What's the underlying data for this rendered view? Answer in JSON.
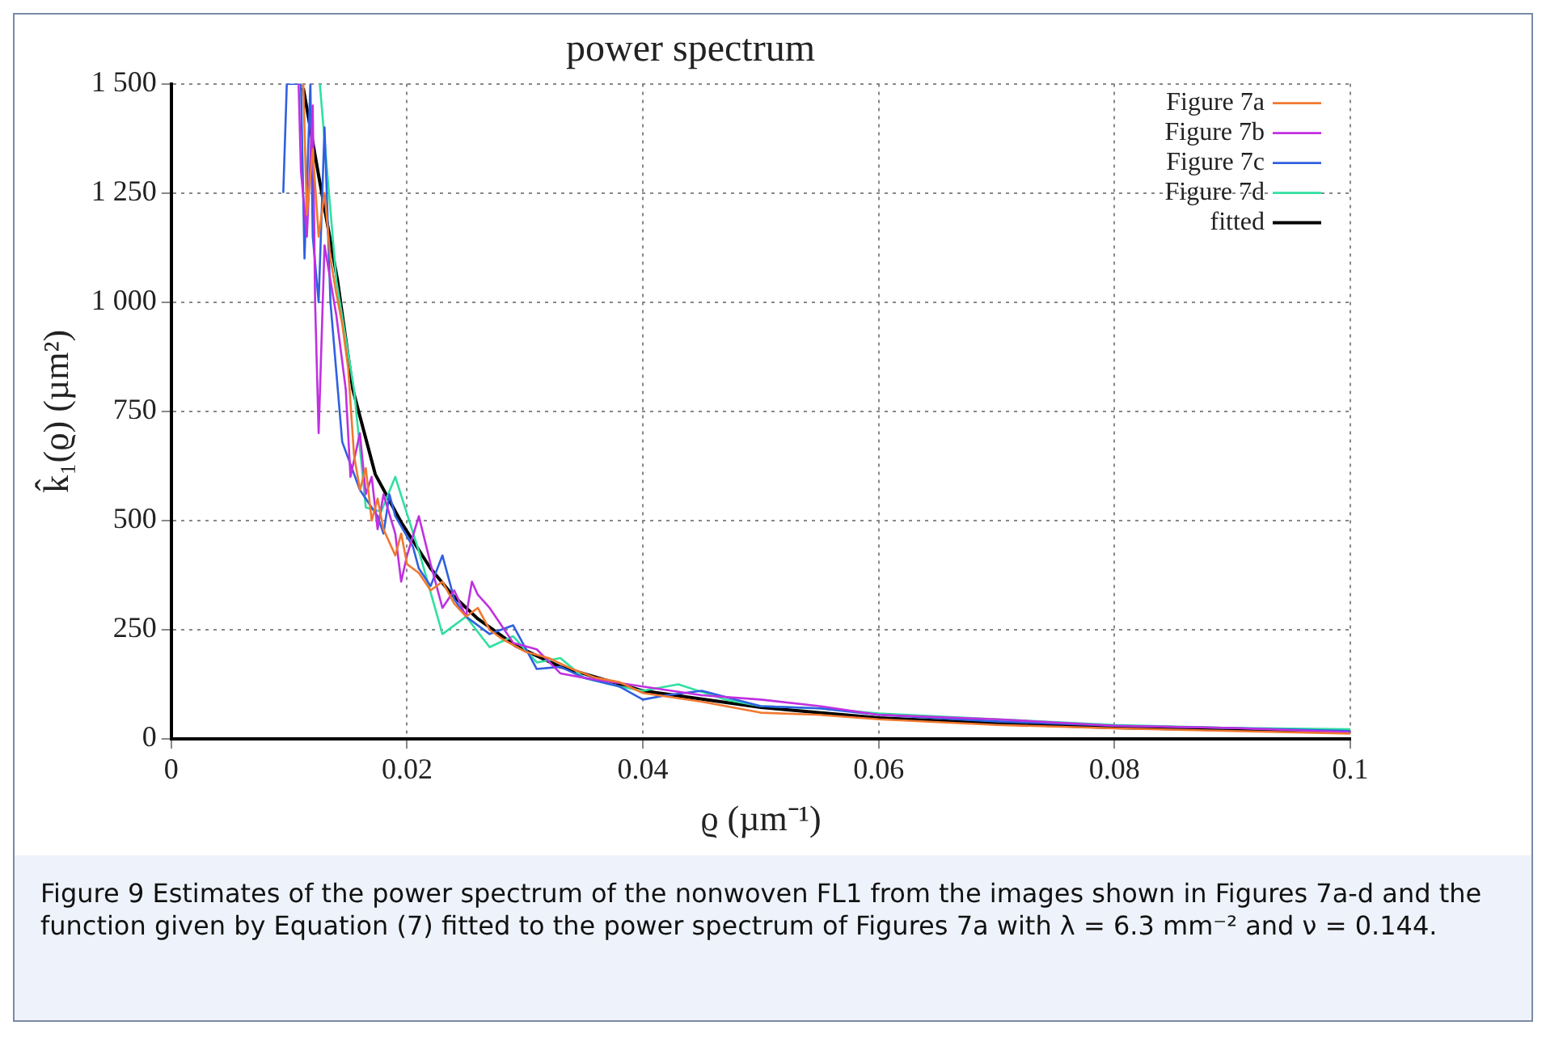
{
  "chart_data": {
    "type": "line",
    "title": "power spectrum",
    "xlabel": "ϱ (µm⁻¹)",
    "ylabel": "k̂₁(ϱ) (µm²)",
    "xlim": [
      0,
      0.1
    ],
    "xticks": [
      0,
      0.02,
      0.04,
      0.06,
      0.08,
      0.1
    ],
    "ylim": [
      0,
      1500
    ],
    "yticks": [
      0,
      250,
      500,
      750,
      {
        "value": 1000,
        "label": "1 000"
      },
      {
        "value": 1250,
        "label": "1 250"
      },
      {
        "value": 1500,
        "label": "1 500"
      }
    ],
    "grid": true,
    "legend": "top right",
    "marker": "none",
    "line_style": "solid",
    "annotations": [
      "Figure 9 Estimates of the power spectrum of the nonwoven FL1 from the images shown in Figures 7a-d and the function given by Equation (7) fitted to the power spectrum of Figures 7a with λ = 6.3 mm⁻² and ν = 0.144."
    ],
    "series": [
      {
        "name": "Figure 7a",
        "color": "#f07830",
        "x": [
          0.0112,
          0.0115,
          0.012,
          0.0125,
          0.013,
          0.0135,
          0.014,
          0.0145,
          0.015,
          0.0155,
          0.016,
          0.0165,
          0.017,
          0.0175,
          0.018,
          0.019,
          0.0195,
          0.02,
          0.021,
          0.022,
          0.023,
          0.024,
          0.025,
          0.026,
          0.027,
          0.028,
          0.03,
          0.032,
          0.034,
          0.036,
          0.038,
          0.04,
          0.045,
          0.05,
          0.055,
          0.06,
          0.07,
          0.08,
          0.09,
          0.1
        ],
        "values": [
          1500,
          1200,
          1350,
          1150,
          1250,
          1100,
          1020,
          950,
          850,
          650,
          570,
          620,
          500,
          550,
          480,
          420,
          470,
          400,
          380,
          340,
          360,
          310,
          280,
          300,
          250,
          230,
          200,
          185,
          160,
          140,
          130,
          105,
          85,
          60,
          55,
          45,
          32,
          24,
          18,
          12
        ]
      },
      {
        "name": "Figure 7b",
        "color": "#c030e0",
        "x": [
          0.0108,
          0.011,
          0.0115,
          0.012,
          0.0122,
          0.0125,
          0.013,
          0.0135,
          0.014,
          0.0148,
          0.0152,
          0.016,
          0.0165,
          0.017,
          0.0175,
          0.018,
          0.019,
          0.0195,
          0.02,
          0.021,
          0.022,
          0.023,
          0.024,
          0.025,
          0.0255,
          0.026,
          0.027,
          0.029,
          0.031,
          0.033,
          0.035,
          0.04,
          0.045,
          0.05,
          0.055,
          0.06,
          0.07,
          0.08,
          0.09,
          0.1
        ],
        "values": [
          1500,
          1300,
          1150,
          1450,
          1000,
          700,
          1130,
          1050,
          970,
          800,
          600,
          700,
          560,
          600,
          480,
          560,
          470,
          360,
          420,
          510,
          400,
          300,
          340,
          280,
          360,
          330,
          300,
          220,
          205,
          150,
          140,
          120,
          100,
          90,
          75,
          55,
          45,
          30,
          25,
          15
        ]
      },
      {
        "name": "Figure 7c",
        "color": "#3060e0",
        "x": [
          0.0095,
          0.0098,
          0.011,
          0.0113,
          0.0118,
          0.012,
          0.0125,
          0.013,
          0.0135,
          0.0145,
          0.016,
          0.0175,
          0.018,
          0.0185,
          0.019,
          0.0205,
          0.021,
          0.022,
          0.023,
          0.024,
          0.025,
          0.027,
          0.029,
          0.031,
          0.033,
          0.035,
          0.038,
          0.04,
          0.042,
          0.045,
          0.05,
          0.055,
          0.06,
          0.07,
          0.08,
          0.09,
          0.1
        ],
        "values": [
          1250,
          1500,
          1500,
          1100,
          1500,
          1150,
          1000,
          1400,
          1000,
          680,
          570,
          510,
          470,
          560,
          510,
          440,
          390,
          350,
          420,
          320,
          280,
          240,
          260,
          160,
          165,
          140,
          120,
          90,
          100,
          110,
          75,
          70,
          55,
          40,
          30,
          25,
          18
        ]
      },
      {
        "name": "Figure 7d",
        "color": "#30e0a0",
        "x": [
          0.0126,
          0.014,
          0.0155,
          0.0165,
          0.0178,
          0.019,
          0.021,
          0.023,
          0.025,
          0.027,
          0.029,
          0.031,
          0.033,
          0.035,
          0.038,
          0.04,
          0.043,
          0.047,
          0.05,
          0.055,
          0.06,
          0.07,
          0.08,
          0.09,
          0.1
        ],
        "values": [
          1500,
          1050,
          800,
          530,
          520,
          600,
          430,
          240,
          280,
          210,
          235,
          175,
          185,
          140,
          120,
          110,
          125,
          90,
          75,
          70,
          58,
          45,
          32,
          25,
          22
        ]
      },
      {
        "name": "fitted",
        "color": "#000000",
        "x": [
          0.0112,
          0.0125,
          0.0141,
          0.0154,
          0.0173,
          0.0195,
          0.022,
          0.0238,
          0.026,
          0.0292,
          0.033,
          0.04,
          0.05,
          0.06,
          0.07,
          0.08,
          0.09,
          0.1
        ],
        "values": [
          1490,
          1290,
          1050,
          800,
          606,
          496,
          390,
          331,
          275,
          213,
          165,
          110,
          72,
          48,
          35,
          26,
          21,
          18
        ]
      }
    ]
  }
}
